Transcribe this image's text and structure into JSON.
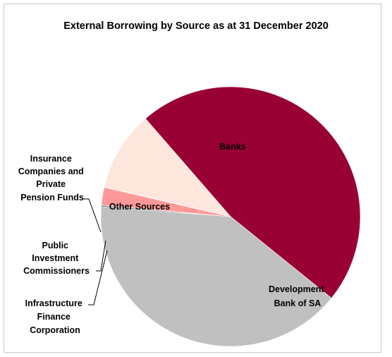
{
  "chart_data": {
    "type": "pie",
    "title": "External Borrowing by Source as at 31 December 2020",
    "slices": [
      {
        "label": "Banks",
        "value": 47.2,
        "color": "#990033"
      },
      {
        "label": "Development Bank of SA",
        "value": 40.4,
        "color": "#c0c0c0"
      },
      {
        "label": "Infrastructure Finance Corporation",
        "value": 0.2,
        "color": "#8a8a8a"
      },
      {
        "label": "Public Investment Commissioners",
        "value": 2.2,
        "color": "#ff9999"
      },
      {
        "label": "Insurance Companies and Private Pension Funds",
        "value": 0.1,
        "color": "#f5c8b8"
      },
      {
        "label": "Other Sources",
        "value": 9.9,
        "color": "#fde6dc"
      }
    ],
    "start_angle_deg": -131,
    "legend": "none"
  }
}
